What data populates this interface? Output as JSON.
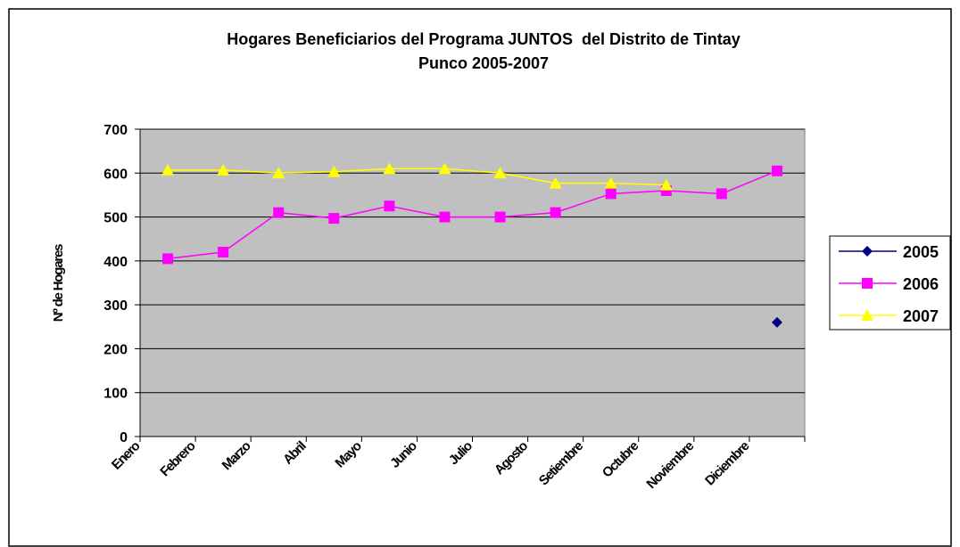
{
  "chart_data": {
    "type": "line",
    "title": [
      "Hogares Beneficiarios del Programa JUNTOS  del Distrito de Tintay",
      "Punco 2005-2007"
    ],
    "y_label": "Nº de Hogares",
    "categories": [
      "Enero",
      "Febrero",
      "Marzo",
      "Abril",
      "Mayo",
      "Junio",
      "Julio",
      "Agosto",
      "Setiembre",
      "Octubre",
      "Noviembre",
      "Diciembre"
    ],
    "series": [
      {
        "name": "2005",
        "color": "#000080",
        "marker": "diamond",
        "values": [
          null,
          null,
          null,
          null,
          null,
          null,
          null,
          null,
          null,
          null,
          null,
          260
        ]
      },
      {
        "name": "2006",
        "color": "#ff00ff",
        "marker": "square",
        "values": [
          405,
          420,
          510,
          497,
          525,
          500,
          500,
          510,
          553,
          560,
          553,
          605
        ]
      },
      {
        "name": "2007",
        "color": "#ffff00",
        "marker": "triangle",
        "values": [
          607,
          607,
          600,
          603,
          610,
          610,
          600,
          577,
          577,
          573,
          null,
          null
        ]
      }
    ],
    "ylim": [
      0,
      700
    ],
    "yticks": [
      0,
      100,
      200,
      300,
      400,
      500,
      600,
      700
    ],
    "grid": true,
    "legend": "right"
  }
}
